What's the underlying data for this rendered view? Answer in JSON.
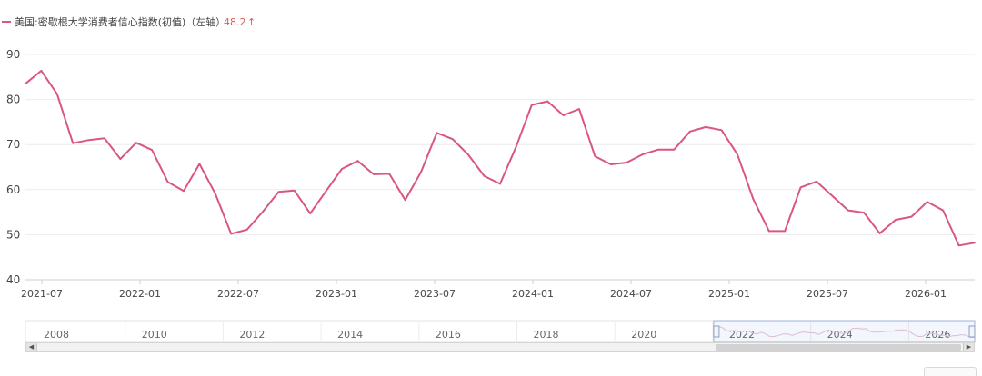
{
  "legend": {
    "series_label": "美国:密歇根大学消费者信心指数(初值)（左轴）",
    "latest_value": "48.2",
    "arrow_glyph": "↑",
    "color": "#d9577f",
    "value_color": "#e05a4f"
  },
  "chart_data": {
    "type": "line",
    "x_start": "2021-06",
    "x_end": "2026-04",
    "x_labels": [
      "2021-07",
      "2022-01",
      "2022-07",
      "2023-01",
      "2023-07",
      "2024-01",
      "2024-07",
      "2025-01",
      "2025-07",
      "2026-01"
    ],
    "ylim": [
      40,
      90
    ],
    "yticks": [
      40,
      50,
      60,
      70,
      80,
      90
    ],
    "grid": true,
    "series": [
      {
        "name": "美国:密歇根大学消费者信心指数(初值)（左轴）",
        "color": "#d9577f",
        "values": [
          83.5,
          86.4,
          81.2,
          70.3,
          71.0,
          71.4,
          66.8,
          70.4,
          68.8,
          61.7,
          59.7,
          65.7,
          59.1,
          50.2,
          51.1,
          55.1,
          59.5,
          59.8,
          54.7,
          59.7,
          64.6,
          66.4,
          63.4,
          63.5,
          57.7,
          63.9,
          72.6,
          71.2,
          67.7,
          63.0,
          61.3,
          69.4,
          78.8,
          79.6,
          76.5,
          77.9,
          67.4,
          65.6,
          66.0,
          67.8,
          68.9,
          68.9,
          72.9,
          73.9,
          73.2,
          67.8,
          57.9,
          50.8,
          50.8,
          60.5,
          61.8,
          58.6,
          55.4,
          54.9,
          50.3,
          53.3,
          54.0,
          57.3,
          55.4,
          47.6,
          48.2
        ]
      }
    ]
  },
  "navigator": {
    "year_labels": [
      "2008",
      "2010",
      "2012",
      "2014",
      "2016",
      "2018",
      "2020",
      "2022",
      "2024",
      "2026"
    ]
  }
}
